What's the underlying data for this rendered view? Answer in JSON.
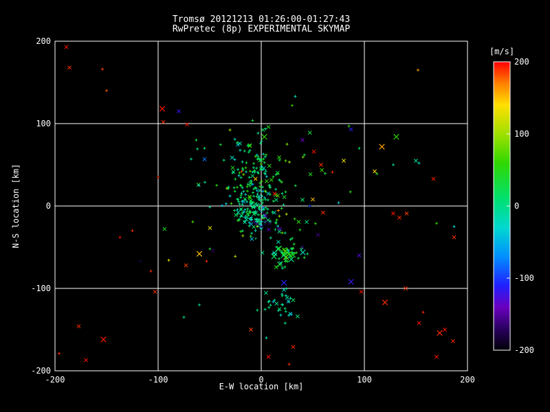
{
  "chart_data": {
    "type": "scatter",
    "title": "Tromsø 20121213 01:26:00-01:27:43",
    "subtitle": "RwPretec (8p) EXPERIMENTAL SKYMAP",
    "xlabel": "E-W location [km]",
    "ylabel": "N-S location [km]",
    "xlim": [
      -200,
      200
    ],
    "ylim": [
      -200,
      200
    ],
    "x_ticks": [
      -200,
      -100,
      0,
      100,
      200
    ],
    "y_ticks": [
      -200,
      -100,
      0,
      100,
      200
    ],
    "grid_lines": [
      -100,
      0,
      100
    ],
    "background": "#000000",
    "frame_color": "#ffffff",
    "colorbar": {
      "title": "[m/s]",
      "ticks": [
        200,
        100,
        0,
        -100,
        -200
      ],
      "min": -200,
      "max": 200,
      "colormap_stops": [
        {
          "v": -200,
          "color": "#000005"
        },
        {
          "v": -170,
          "color": "#2a0060"
        },
        {
          "v": -140,
          "color": "#6a00c0"
        },
        {
          "v": -110,
          "color": "#2020ff"
        },
        {
          "v": -70,
          "color": "#0090ff"
        },
        {
          "v": -30,
          "color": "#00d8d0"
        },
        {
          "v": 10,
          "color": "#00e070"
        },
        {
          "v": 60,
          "color": "#30d800"
        },
        {
          "v": 100,
          "color": "#a0e000"
        },
        {
          "v": 140,
          "color": "#ffe000"
        },
        {
          "v": 170,
          "color": "#ff8000"
        },
        {
          "v": 200,
          "color": "#ff0000"
        }
      ]
    },
    "symbol_key": {
      "p": "plus-small",
      "P": "plus-large",
      "x": "cross-small",
      "X": "cross-large"
    },
    "clusters": [
      {
        "n": 150,
        "cx": -6,
        "cy": 24,
        "sx": 14,
        "sy": 26,
        "v_mean": 15,
        "v_sd": 30,
        "symbols": [
          "p",
          "p",
          "p",
          "p",
          "x"
        ]
      },
      {
        "n": 100,
        "cx": -6,
        "cy": -8,
        "sx": 9,
        "sy": 11,
        "v_mean": 0,
        "v_sd": 22,
        "symbols": [
          "p",
          "p",
          "p",
          "p",
          "x"
        ]
      },
      {
        "n": 14,
        "cx": 3,
        "cy": -24,
        "sx": 7,
        "sy": 7,
        "v_mean": -170,
        "v_sd": 20,
        "symbols": [
          "x"
        ]
      },
      {
        "n": 70,
        "cx": 0,
        "cy": 18,
        "sx": 40,
        "sy": 42,
        "v_mean": 35,
        "v_sd": 55,
        "symbols": [
          "p",
          "p",
          "x"
        ]
      },
      {
        "n": 48,
        "cx": 24,
        "cy": -58,
        "sx": 9,
        "sy": 9,
        "v_mean": 20,
        "v_sd": 25,
        "symbols": [
          "p",
          "p",
          "p",
          "x",
          "X"
        ]
      },
      {
        "n": 32,
        "cx": 18,
        "cy": -120,
        "sx": 8,
        "sy": 11,
        "v_mean": -5,
        "v_sd": 20,
        "symbols": [
          "p",
          "p",
          "p",
          "x"
        ]
      }
    ],
    "points": [
      [
        -189,
        193,
        195,
        "x"
      ],
      [
        -186,
        168,
        190,
        "x"
      ],
      [
        -154,
        166,
        185,
        "p"
      ],
      [
        -150,
        140,
        180,
        "p"
      ],
      [
        -96,
        118,
        195,
        "X"
      ],
      [
        -80,
        115,
        -120,
        "x"
      ],
      [
        -95,
        102,
        190,
        "x"
      ],
      [
        -72,
        99,
        195,
        "x"
      ],
      [
        -63,
        80,
        35,
        "p"
      ],
      [
        -55,
        70,
        10,
        "p"
      ],
      [
        -68,
        57,
        -10,
        "p"
      ],
      [
        -100,
        35,
        185,
        "p"
      ],
      [
        -125,
        -30,
        190,
        "p"
      ],
      [
        -137,
        -38,
        195,
        "p"
      ],
      [
        33,
        133,
        -20,
        "p"
      ],
      [
        30,
        122,
        60,
        "p"
      ],
      [
        3,
        84,
        60,
        "X"
      ],
      [
        7,
        96,
        45,
        "x"
      ],
      [
        -11,
        73,
        55,
        "x"
      ],
      [
        25,
        75,
        90,
        "p"
      ],
      [
        40,
        80,
        -140,
        "x"
      ],
      [
        51,
        66,
        195,
        "x"
      ],
      [
        58,
        50,
        190,
        "x"
      ],
      [
        69,
        41,
        190,
        "p"
      ],
      [
        80,
        55,
        130,
        "x"
      ],
      [
        87,
        93,
        -110,
        "x"
      ],
      [
        85,
        97,
        60,
        "p"
      ],
      [
        95,
        70,
        20,
        "p"
      ],
      [
        117,
        72,
        160,
        "X"
      ],
      [
        131,
        84,
        60,
        "X"
      ],
      [
        152,
        165,
        160,
        "p"
      ],
      [
        128,
        50,
        0,
        "p"
      ],
      [
        150,
        55,
        -10,
        "x"
      ],
      [
        167,
        33,
        195,
        "x"
      ],
      [
        110,
        42,
        140,
        "x"
      ],
      [
        153,
        52,
        -20,
        "p"
      ],
      [
        128,
        -9,
        195,
        "x"
      ],
      [
        134,
        -14,
        190,
        "x"
      ],
      [
        141,
        -9,
        185,
        "x"
      ],
      [
        170,
        -21,
        60,
        "p"
      ],
      [
        187,
        -38,
        190,
        "x"
      ],
      [
        187,
        -25,
        -30,
        "p"
      ],
      [
        -103,
        -104,
        190,
        "x"
      ],
      [
        -117,
        -67,
        -180,
        "p"
      ],
      [
        -107,
        -79,
        190,
        "p"
      ],
      [
        -60,
        -58,
        150,
        "X"
      ],
      [
        -53,
        -67,
        190,
        "p"
      ],
      [
        -47,
        -54,
        -170,
        "x"
      ],
      [
        -73,
        -72,
        185,
        "x"
      ],
      [
        -60,
        -120,
        0,
        "p"
      ],
      [
        -75,
        -135,
        10,
        "p"
      ],
      [
        -177,
        -146,
        190,
        "x"
      ],
      [
        -153,
        -162,
        195,
        "X"
      ],
      [
        -196,
        -179,
        190,
        "p"
      ],
      [
        -170,
        -187,
        195,
        "x"
      ],
      [
        7,
        -183,
        195,
        "x"
      ],
      [
        31,
        -171,
        190,
        "x"
      ],
      [
        27,
        -192,
        190,
        "p"
      ],
      [
        -10,
        -150,
        185,
        "x"
      ],
      [
        5,
        -160,
        -20,
        "p"
      ],
      [
        87,
        -92,
        -120,
        "X"
      ],
      [
        97,
        -104,
        195,
        "x"
      ],
      [
        120,
        -117,
        190,
        "X"
      ],
      [
        140,
        -100,
        190,
        "x"
      ],
      [
        153,
        -142,
        195,
        "x"
      ],
      [
        173,
        -154,
        190,
        "X"
      ],
      [
        157,
        -129,
        190,
        "p"
      ],
      [
        170,
        -183,
        195,
        "x"
      ],
      [
        178,
        -150,
        195,
        "x"
      ],
      [
        186,
        -164,
        190,
        "x"
      ],
      [
        95,
        -60,
        -130,
        "x"
      ],
      [
        55,
        -35,
        -160,
        "x"
      ],
      [
        22,
        -93,
        -110,
        "X"
      ],
      [
        27,
        -58,
        60,
        "X"
      ],
      [
        40,
        -50,
        -170,
        "x"
      ],
      [
        -19,
        42,
        185,
        "p"
      ],
      [
        13,
        15,
        195,
        "x"
      ],
      [
        50,
        8,
        150,
        "x"
      ],
      [
        47,
        0,
        -90,
        "p"
      ],
      [
        60,
        -8,
        190,
        "x"
      ]
    ]
  }
}
